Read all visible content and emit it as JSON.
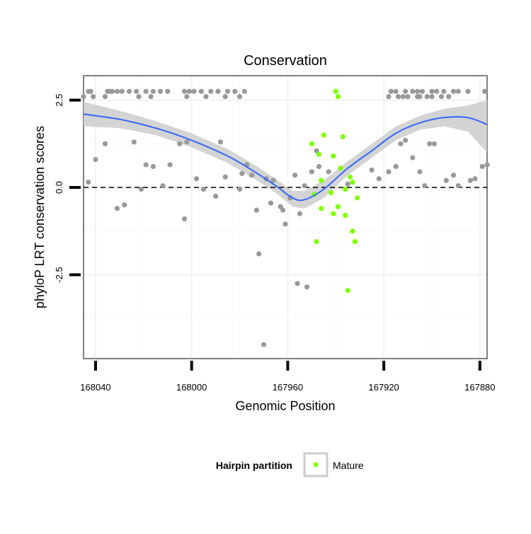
{
  "chart_data": {
    "type": "scatter",
    "title": "Conservation",
    "xlabel": "Genomic Position",
    "ylabel": "phyloP LRT conservation scores",
    "xlim": [
      168045,
      167877
    ],
    "ylim": [
      -4.9,
      3.2
    ],
    "x_reversed": true,
    "x_ticks": [
      168040,
      168000,
      167960,
      167920,
      167880
    ],
    "x_tick_labels": [
      "168040",
      "168000",
      "167960",
      "167920",
      "167880"
    ],
    "y_ticks": [
      2.5,
      0.0,
      -2.5
    ],
    "y_tick_labels": [
      "2.5",
      "0.0",
      "-2.5"
    ],
    "reference_line_y": 0,
    "grid": true,
    "legend": {
      "title": "Hairpin partition",
      "position": "bottom",
      "items": [
        {
          "label": "Mature",
          "color": "#7fff00"
        }
      ]
    },
    "colors": {
      "other": "#999999",
      "mature": "#7fff00",
      "smooth": "#3366ff",
      "ribbon": "#cccccc"
    },
    "series": [
      {
        "name": "",
        "color": "#999999",
        "points": [
          [
            168045,
            2.6
          ],
          [
            168043,
            2.75
          ],
          [
            168042,
            2.75
          ],
          [
            168041,
            2.6
          ],
          [
            168035,
            2.75
          ],
          [
            168034,
            2.75
          ],
          [
            168033,
            2.75
          ],
          [
            168036,
            2.6
          ],
          [
            168031,
            2.75
          ],
          [
            168029,
            2.75
          ],
          [
            168026,
            2.75
          ],
          [
            168023,
            2.75
          ],
          [
            168022,
            2.6
          ],
          [
            168019,
            2.75
          ],
          [
            168017,
            2.6
          ],
          [
            168016,
            2.75
          ],
          [
            168013,
            2.75
          ],
          [
            168010,
            2.75
          ],
          [
            168003,
            2.75
          ],
          [
            168001,
            2.75
          ],
          [
            167999,
            2.75
          ],
          [
            168002,
            2.6
          ],
          [
            167996,
            2.75
          ],
          [
            167994,
            2.6
          ],
          [
            167992,
            2.75
          ],
          [
            167989,
            2.75
          ],
          [
            167986,
            2.6
          ],
          [
            167985,
            2.75
          ],
          [
            167982,
            2.75
          ],
          [
            167980,
            2.6
          ],
          [
            167978,
            2.75
          ],
          [
            167917,
            2.75
          ],
          [
            167914,
            2.6
          ],
          [
            167915,
            2.75
          ],
          [
            167911,
            2.75
          ],
          [
            167910,
            2.6
          ],
          [
            167908,
            2.75
          ],
          [
            167905,
            2.6
          ],
          [
            167904,
            2.75
          ],
          [
            167902,
            2.6
          ],
          [
            167900,
            2.75
          ],
          [
            167898,
            2.75
          ],
          [
            167896,
            2.6
          ],
          [
            167895,
            2.75
          ],
          [
            167893,
            2.6
          ],
          [
            167891,
            2.75
          ],
          [
            167889,
            2.75
          ],
          [
            167885,
            2.75
          ],
          [
            167878,
            2.75
          ],
          [
            167918,
            2.6
          ],
          [
            167912,
            2.6
          ],
          [
            167906,
            2.6
          ],
          [
            167906,
            2.75
          ],
          [
            167900,
            2.6
          ],
          [
            168043,
            0.15
          ],
          [
            168040,
            0.8
          ],
          [
            168036,
            1.25
          ],
          [
            168031,
            -0.6
          ],
          [
            168028,
            -0.5
          ],
          [
            168024,
            1.3
          ],
          [
            168019,
            0.65
          ],
          [
            168016,
            0.6
          ],
          [
            168021,
            -0.05
          ],
          [
            168012,
            0.05
          ],
          [
            168009,
            0.65
          ],
          [
            168005,
            1.25
          ],
          [
            168003,
            -0.9
          ],
          [
            168002,
            1.3
          ],
          [
            167998,
            0.25
          ],
          [
            167995,
            -0.05
          ],
          [
            167990,
            -0.25
          ],
          [
            167988,
            1.3
          ],
          [
            167986,
            0.3
          ],
          [
            167980,
            -0.05
          ],
          [
            167979,
            0.4
          ],
          [
            167977,
            0.65
          ],
          [
            167975,
            0.35
          ],
          [
            167973,
            -0.65
          ],
          [
            167972,
            -1.9
          ],
          [
            167970,
            -4.5
          ],
          [
            167969,
            0.25
          ],
          [
            167966,
            0.2
          ],
          [
            167967,
            -0.45
          ],
          [
            167963,
            -0.55
          ],
          [
            167961,
            -1.05
          ],
          [
            167962,
            -0.65
          ],
          [
            167959,
            -0.3
          ],
          [
            167957,
            0.35
          ],
          [
            167956,
            -2.75
          ],
          [
            167955,
            -0.75
          ],
          [
            167953,
            0.05
          ],
          [
            167952,
            -2.85
          ],
          [
            167950,
            0.45
          ],
          [
            167948,
            1.05
          ],
          [
            167947,
            0.6
          ],
          [
            167943,
            0.45
          ],
          [
            167935,
            0.1
          ],
          [
            167925,
            0.5
          ],
          [
            167922,
            0.25
          ],
          [
            167918,
            0.45
          ],
          [
            167915,
            0.6
          ],
          [
            167908,
            0.85
          ],
          [
            167905,
            0.45
          ],
          [
            167903,
            0.05
          ],
          [
            167901,
            1.25
          ],
          [
            167899,
            1.25
          ],
          [
            167894,
            0.2
          ],
          [
            167891,
            0.35
          ],
          [
            167889,
            0.05
          ],
          [
            167884,
            0.2
          ],
          [
            167882,
            0.25
          ],
          [
            167879,
            0.6
          ],
          [
            167877,
            0.65
          ],
          [
            167911,
            1.35
          ],
          [
            167913,
            1.25
          ]
        ]
      },
      {
        "name": "Mature",
        "color": "#7fff00",
        "points": [
          [
            167940,
            2.75
          ],
          [
            167939,
            2.6
          ],
          [
            167950,
            1.25
          ],
          [
            167945,
            1.5
          ],
          [
            167947,
            0.95
          ],
          [
            167941,
            0.9
          ],
          [
            167937,
            1.45
          ],
          [
            167946,
            0.2
          ],
          [
            167949,
            -0.2
          ],
          [
            167942,
            -0.15
          ],
          [
            167938,
            0.55
          ],
          [
            167936,
            -0.05
          ],
          [
            167934,
            0.3
          ],
          [
            167933,
            0.15
          ],
          [
            167931,
            -0.3
          ],
          [
            167946,
            -0.6
          ],
          [
            167939,
            -0.55
          ],
          [
            167936,
            -0.8
          ],
          [
            167933,
            -1.25
          ],
          [
            167948,
            -1.55
          ],
          [
            167932,
            -1.55
          ],
          [
            167941,
            -0.75
          ],
          [
            167935,
            -2.95
          ]
        ]
      }
    ],
    "smooth": {
      "x": [
        168045,
        168030,
        168015,
        168000,
        167985,
        167975,
        167965,
        167958,
        167953,
        167945,
        167935,
        167925,
        167915,
        167905,
        167895,
        167885,
        167877
      ],
      "y": [
        2.1,
        1.95,
        1.7,
        1.35,
        0.9,
        0.5,
        0.05,
        -0.3,
        -0.35,
        -0.05,
        0.55,
        1.05,
        1.55,
        1.85,
        2.0,
        2.0,
        1.8
      ],
      "lower": [
        1.75,
        1.7,
        1.5,
        1.15,
        0.7,
        0.3,
        -0.15,
        -0.55,
        -0.6,
        -0.3,
        0.35,
        0.85,
        1.35,
        1.65,
        1.75,
        1.6,
        1.0
      ],
      "upper": [
        2.45,
        2.2,
        1.9,
        1.55,
        1.1,
        0.7,
        0.25,
        -0.1,
        -0.1,
        0.2,
        0.75,
        1.25,
        1.75,
        2.05,
        2.25,
        2.35,
        2.5
      ]
    }
  }
}
